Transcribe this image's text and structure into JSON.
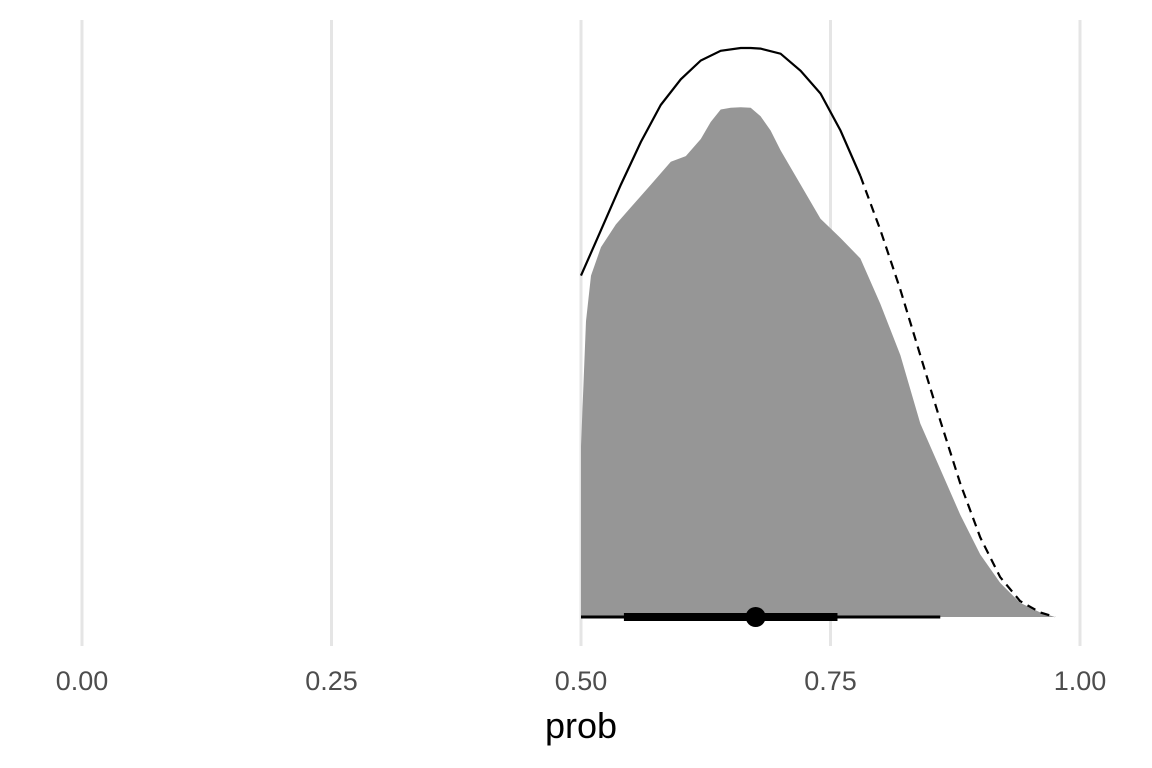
{
  "chart_data": {
    "type": "area",
    "xlabel": "prob",
    "ylabel": "",
    "xlim": [
      0,
      1
    ],
    "x_ticks": [
      "0.00",
      "0.25",
      "0.50",
      "0.75",
      "1.00"
    ],
    "grid": "vertical major gridlines",
    "legend": "none",
    "colors": {
      "density_fill": "#969696",
      "prior_line": "#000000",
      "interval": "#000000",
      "grid": "#e5e5e5",
      "tick_text": "#4d4d4d"
    },
    "posterior_density": {
      "x": [
        0.5,
        0.505,
        0.51,
        0.52,
        0.535,
        0.55,
        0.57,
        0.59,
        0.605,
        0.62,
        0.63,
        0.64,
        0.65,
        0.66,
        0.67,
        0.68,
        0.69,
        0.7,
        0.72,
        0.74,
        0.76,
        0.78,
        0.8,
        0.82,
        0.84,
        0.86,
        0.88,
        0.9,
        0.92,
        0.94,
        0.96,
        0.975
      ],
      "density": [
        0.3,
        0.52,
        0.6,
        0.65,
        0.69,
        0.72,
        0.76,
        0.8,
        0.81,
        0.84,
        0.87,
        0.892,
        0.895,
        0.896,
        0.895,
        0.88,
        0.855,
        0.82,
        0.76,
        0.7,
        0.666,
        0.63,
        0.55,
        0.46,
        0.34,
        0.26,
        0.18,
        0.11,
        0.06,
        0.025,
        0.008,
        0.0
      ]
    },
    "prior_curve": {
      "x": [
        0.5,
        0.52,
        0.54,
        0.56,
        0.58,
        0.6,
        0.62,
        0.64,
        0.66,
        0.67,
        0.68,
        0.7,
        0.72,
        0.74,
        0.76,
        0.78,
        0.8,
        0.82,
        0.84,
        0.86,
        0.88,
        0.9,
        0.92,
        0.94,
        0.96,
        0.975
      ],
      "density": [
        0.6,
        0.68,
        0.76,
        0.835,
        0.9,
        0.945,
        0.978,
        0.995,
        1.0,
        1.0,
        0.999,
        0.99,
        0.96,
        0.92,
        0.855,
        0.775,
        0.68,
        0.575,
        0.46,
        0.345,
        0.235,
        0.14,
        0.07,
        0.028,
        0.008,
        0.0
      ],
      "solid_range": [
        0.5,
        0.78
      ],
      "dashed_range": [
        0.78,
        0.975
      ]
    },
    "point_interval": {
      "point": 0.675,
      "inner": [
        0.543,
        0.757
      ],
      "outer": [
        0.5,
        0.86
      ]
    }
  }
}
